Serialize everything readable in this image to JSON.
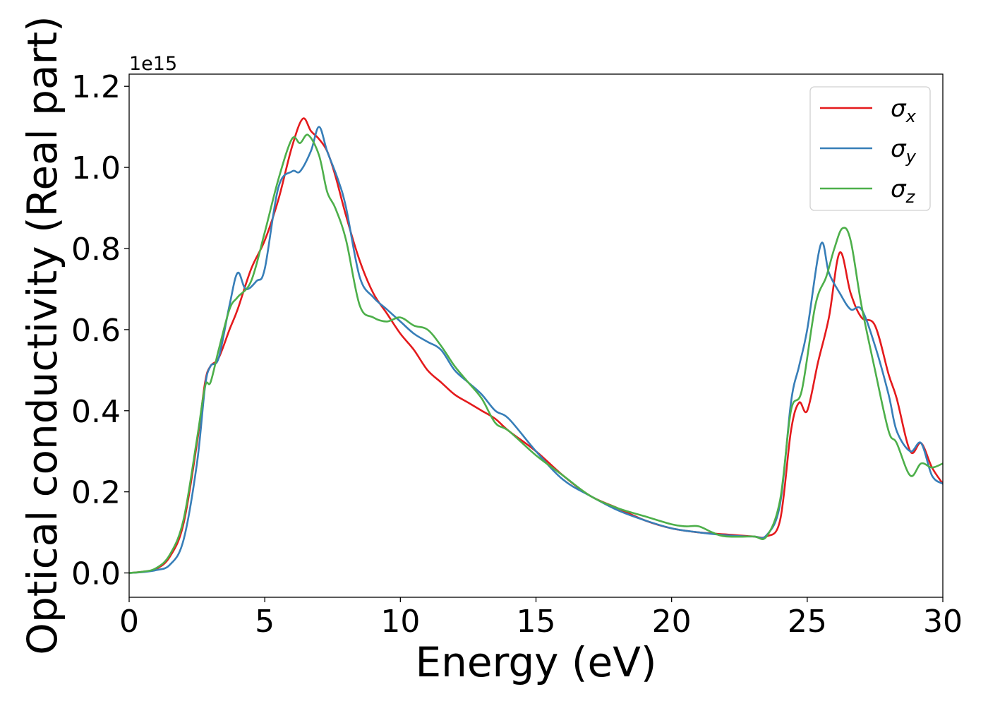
{
  "chart_data": {
    "type": "line",
    "title": "",
    "xlabel": "Energy (eV)",
    "ylabel": "Optical conductivity (Real part)",
    "y_offset_label": "1e15",
    "xlim": [
      0,
      30
    ],
    "ylim": [
      -0.06,
      1.23
    ],
    "y_scale_factor": 1000000000000000.0,
    "x_ticks": [
      0,
      5,
      10,
      15,
      20,
      25,
      30
    ],
    "x_tick_labels": [
      "0",
      "5",
      "10",
      "15",
      "20",
      "25",
      "30"
    ],
    "y_ticks": [
      0.0,
      0.2,
      0.4,
      0.6,
      0.8,
      1.0,
      1.2
    ],
    "y_tick_labels": [
      "0.0",
      "0.2",
      "0.4",
      "0.6",
      "0.8",
      "1.0",
      "1.2"
    ],
    "grid": false,
    "legend_position": "top-right",
    "series": [
      {
        "name": "σx",
        "legend_symbol": "σ",
        "legend_sub": "x",
        "color": "#e41a1c",
        "x": [
          0,
          0.5,
          1,
          1.5,
          2,
          2.5,
          2.8,
          3,
          3.3,
          3.7,
          4,
          4.5,
          5,
          5.5,
          6,
          6.4,
          6.7,
          7,
          7.3,
          7.6,
          8,
          8.5,
          9,
          9.5,
          10,
          10.5,
          11,
          11.5,
          12,
          12.5,
          13,
          13.5,
          14,
          15,
          16,
          17,
          18,
          19,
          20,
          21,
          22,
          23,
          23.5,
          24,
          24.4,
          24.7,
          25,
          25.4,
          25.8,
          26.2,
          26.6,
          27,
          27.5,
          28,
          28.3,
          28.8,
          29.2,
          29.6,
          30
        ],
        "y": [
          0,
          0.003,
          0.01,
          0.04,
          0.12,
          0.32,
          0.47,
          0.51,
          0.53,
          0.6,
          0.65,
          0.75,
          0.82,
          0.92,
          1.05,
          1.12,
          1.09,
          1.07,
          1.04,
          0.98,
          0.88,
          0.77,
          0.69,
          0.64,
          0.59,
          0.55,
          0.5,
          0.47,
          0.44,
          0.42,
          0.4,
          0.38,
          0.35,
          0.3,
          0.24,
          0.19,
          0.16,
          0.13,
          0.11,
          0.1,
          0.095,
          0.09,
          0.09,
          0.13,
          0.35,
          0.42,
          0.4,
          0.52,
          0.63,
          0.79,
          0.69,
          0.63,
          0.61,
          0.49,
          0.43,
          0.3,
          0.32,
          0.26,
          0.22
        ]
      },
      {
        "name": "σy",
        "legend_symbol": "σ",
        "legend_sub": "y",
        "color": "#377eb8",
        "x": [
          0,
          0.5,
          1,
          1.5,
          2,
          2.5,
          2.8,
          3,
          3.3,
          3.7,
          4,
          4.3,
          4.7,
          5,
          5.5,
          6,
          6.3,
          6.7,
          7,
          7.3,
          7.7,
          8,
          8.5,
          9,
          9.5,
          10,
          10.5,
          11,
          11.5,
          12,
          12.5,
          13,
          13.5,
          14,
          15,
          16,
          17,
          18,
          19,
          20,
          21,
          22,
          23,
          23.5,
          24,
          24.4,
          24.7,
          25,
          25.5,
          25.8,
          26.2,
          26.6,
          27,
          27.5,
          28,
          28.3,
          28.8,
          29.2,
          29.6,
          30
        ],
        "y": [
          0,
          0.002,
          0.007,
          0.02,
          0.08,
          0.27,
          0.46,
          0.51,
          0.53,
          0.66,
          0.74,
          0.7,
          0.72,
          0.75,
          0.95,
          0.99,
          0.99,
          1.04,
          1.1,
          1.04,
          0.97,
          0.9,
          0.73,
          0.68,
          0.65,
          0.62,
          0.59,
          0.57,
          0.55,
          0.5,
          0.47,
          0.44,
          0.4,
          0.38,
          0.3,
          0.23,
          0.19,
          0.155,
          0.13,
          0.11,
          0.1,
          0.093,
          0.09,
          0.093,
          0.17,
          0.42,
          0.51,
          0.6,
          0.81,
          0.74,
          0.69,
          0.65,
          0.65,
          0.56,
          0.44,
          0.35,
          0.3,
          0.32,
          0.24,
          0.22
        ]
      },
      {
        "name": "σz",
        "legend_symbol": "σ",
        "legend_sub": "z",
        "color": "#4daf4a",
        "x": [
          0,
          0.5,
          1,
          1.5,
          2,
          2.5,
          2.8,
          3,
          3.3,
          3.7,
          4,
          4.5,
          5,
          5.5,
          6,
          6.3,
          6.6,
          7,
          7.3,
          7.6,
          8,
          8.5,
          9,
          9.5,
          10,
          10.5,
          11,
          11.5,
          12,
          12.5,
          13,
          13.5,
          14,
          15,
          16,
          17,
          18,
          19,
          20,
          20.5,
          21,
          21.5,
          22,
          23,
          23.5,
          24,
          24.4,
          24.8,
          25.3,
          25.7,
          26,
          26.3,
          26.6,
          27,
          27.5,
          28,
          28.3,
          28.8,
          29.2,
          29.6,
          30
        ],
        "y": [
          0,
          0.003,
          0.012,
          0.045,
          0.13,
          0.33,
          0.46,
          0.47,
          0.55,
          0.65,
          0.68,
          0.72,
          0.84,
          0.97,
          1.07,
          1.06,
          1.08,
          1.03,
          0.94,
          0.9,
          0.82,
          0.66,
          0.63,
          0.62,
          0.63,
          0.61,
          0.6,
          0.56,
          0.51,
          0.47,
          0.43,
          0.37,
          0.35,
          0.29,
          0.24,
          0.19,
          0.16,
          0.14,
          0.12,
          0.115,
          0.115,
          0.1,
          0.09,
          0.09,
          0.09,
          0.18,
          0.4,
          0.45,
          0.66,
          0.73,
          0.8,
          0.85,
          0.82,
          0.66,
          0.5,
          0.35,
          0.32,
          0.24,
          0.27,
          0.26,
          0.27
        ]
      }
    ]
  }
}
